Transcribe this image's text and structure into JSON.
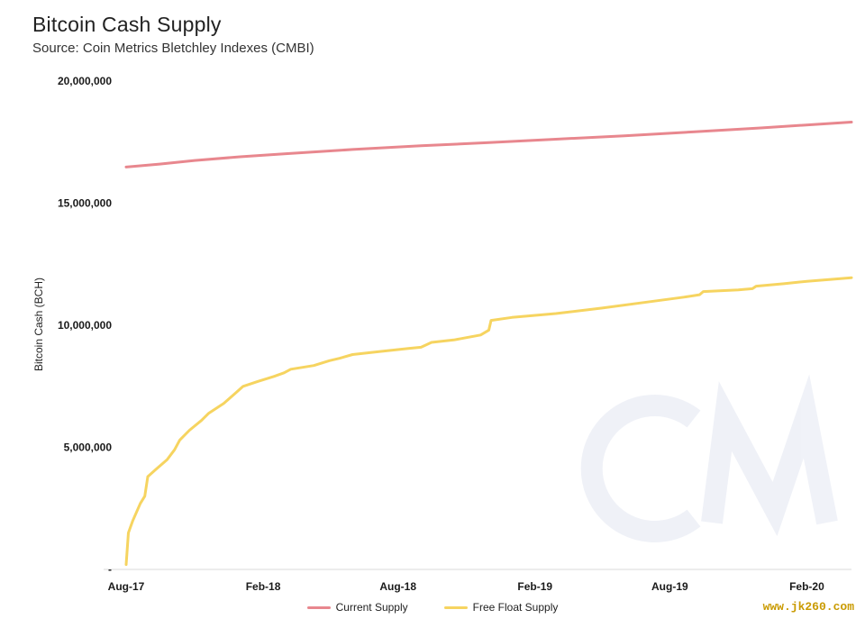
{
  "title": "Bitcoin Cash Supply",
  "subtitle": "Source: Coin Metrics Bletchley Indexes (CMBI)",
  "watermark": "www.jk260.com",
  "logo_text": "CM",
  "chart_data": {
    "type": "line",
    "title": "Bitcoin Cash Supply",
    "ylabel": "Bitcoin Cash (BCH)",
    "xlabel": "",
    "ylim": [
      0,
      20000000
    ],
    "yticks": [
      {
        "value": 0,
        "label": "-"
      },
      {
        "value": 5000000,
        "label": "5,000,000"
      },
      {
        "value": 10000000,
        "label": "10,000,000"
      },
      {
        "value": 15000000,
        "label": "15,000,000"
      },
      {
        "value": 20000000,
        "label": "20,000,000"
      }
    ],
    "xlim": [
      "2017-08-01",
      "2020-04-01"
    ],
    "xticks": [
      {
        "date": "2017-08-01",
        "label": "Aug-17"
      },
      {
        "date": "2018-02-01",
        "label": "Feb-18"
      },
      {
        "date": "2018-08-01",
        "label": "Aug-18"
      },
      {
        "date": "2019-02-01",
        "label": "Feb-19"
      },
      {
        "date": "2019-08-01",
        "label": "Aug-19"
      },
      {
        "date": "2020-02-01",
        "label": "Feb-20"
      }
    ],
    "grid": false,
    "legend_position": "bottom",
    "series": [
      {
        "name": "Current Supply",
        "color": "#e8878e",
        "points": [
          [
            "2017-08-01",
            16480000
          ],
          [
            "2017-09-15",
            16600000
          ],
          [
            "2017-11-01",
            16750000
          ],
          [
            "2018-01-01",
            16900000
          ],
          [
            "2018-03-01",
            17020000
          ],
          [
            "2018-06-01",
            17200000
          ],
          [
            "2018-09-01",
            17350000
          ],
          [
            "2018-12-01",
            17480000
          ],
          [
            "2019-03-01",
            17620000
          ],
          [
            "2019-06-01",
            17760000
          ],
          [
            "2019-09-01",
            17920000
          ],
          [
            "2019-12-01",
            18080000
          ],
          [
            "2020-04-01",
            18320000
          ]
        ]
      },
      {
        "name": "Free Float Supply",
        "color": "#f6d460",
        "points": [
          [
            "2017-08-01",
            200000
          ],
          [
            "2017-08-04",
            1500000
          ],
          [
            "2017-08-10",
            2000000
          ],
          [
            "2017-08-20",
            2700000
          ],
          [
            "2017-08-26",
            3000000
          ],
          [
            "2017-08-30",
            3800000
          ],
          [
            "2017-09-10",
            4100000
          ],
          [
            "2017-09-25",
            4500000
          ],
          [
            "2017-10-05",
            4900000
          ],
          [
            "2017-10-12",
            5300000
          ],
          [
            "2017-10-25",
            5700000
          ],
          [
            "2017-11-10",
            6100000
          ],
          [
            "2017-11-20",
            6400000
          ],
          [
            "2017-12-10",
            6800000
          ],
          [
            "2017-12-25",
            7200000
          ],
          [
            "2018-01-05",
            7500000
          ],
          [
            "2018-01-25",
            7700000
          ],
          [
            "2018-02-15",
            7900000
          ],
          [
            "2018-03-01",
            8050000
          ],
          [
            "2018-03-10",
            8200000
          ],
          [
            "2018-04-10",
            8350000
          ],
          [
            "2018-05-01",
            8550000
          ],
          [
            "2018-05-15",
            8650000
          ],
          [
            "2018-06-01",
            8800000
          ],
          [
            "2018-07-01",
            8900000
          ],
          [
            "2018-08-15",
            9050000
          ],
          [
            "2018-09-01",
            9100000
          ],
          [
            "2018-09-15",
            9300000
          ],
          [
            "2018-10-15",
            9400000
          ],
          [
            "2018-11-20",
            9600000
          ],
          [
            "2018-12-01",
            9800000
          ],
          [
            "2018-12-04",
            10200000
          ],
          [
            "2019-01-01",
            10320000
          ],
          [
            "2019-03-01",
            10480000
          ],
          [
            "2019-05-01",
            10700000
          ],
          [
            "2019-07-01",
            10950000
          ],
          [
            "2019-08-20",
            11150000
          ],
          [
            "2019-09-10",
            11250000
          ],
          [
            "2019-09-15",
            11380000
          ],
          [
            "2019-11-01",
            11450000
          ],
          [
            "2019-11-20",
            11500000
          ],
          [
            "2019-11-25",
            11600000
          ],
          [
            "2020-01-01",
            11700000
          ],
          [
            "2020-02-01",
            11800000
          ],
          [
            "2020-04-01",
            11950000
          ]
        ]
      }
    ]
  }
}
